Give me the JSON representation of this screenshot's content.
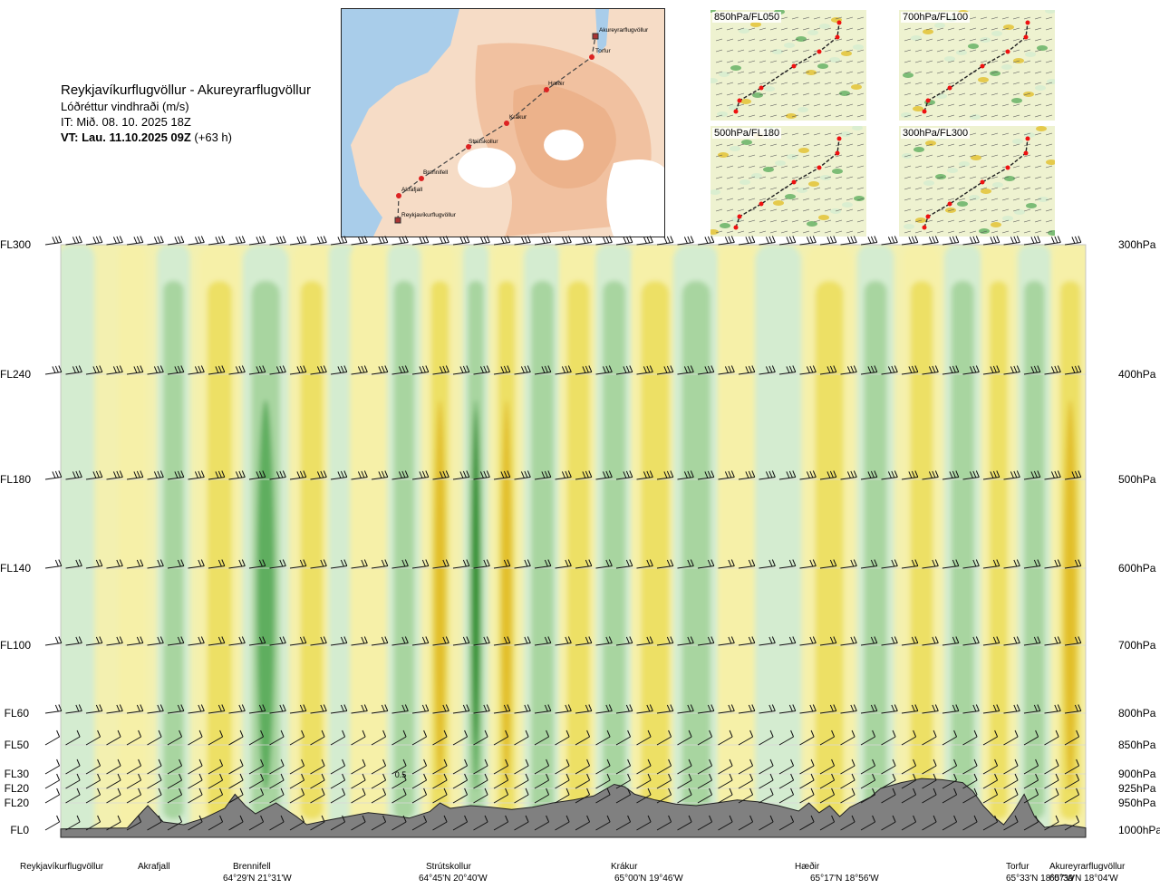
{
  "header": {
    "route": "Reykjavíkurflugvöllur - Akureyrarflugvöllur",
    "parameter": "Lóðréttur vindhraði (m/s)",
    "issue_time": "IT: Mið. 08. 10. 2025 18Z",
    "valid_prefix": "VT: Lau. 11.10.2025 09Z",
    "valid_suffix": " (+63 h)"
  },
  "route_map": {
    "waypoints": [
      "Akureyrarflugvöllur",
      "Torfur",
      "Hæðir",
      "Krákur",
      "Strútskollur",
      "Brennifell",
      "Akrafjall",
      "Reykjavíkurflugvöllur"
    ]
  },
  "insets": [
    {
      "label": "850hPa/FL050"
    },
    {
      "label": "700hPa/FL100"
    },
    {
      "label": "500hPa/FL180"
    },
    {
      "label": "300hPa/FL300"
    }
  ],
  "colors": {
    "strong_up": "#2b8c2b",
    "up": "#5fae5f",
    "weak_up": "#a8d5a0",
    "very_weak_up": "#d4ecd0",
    "neutral": "#f4f9ec",
    "very_weak_down": "#f6f0a8",
    "weak_down": "#ede065",
    "down": "#e2bf2a",
    "strong_down": "#d07a10",
    "terrain": "#808080"
  },
  "chart_data": {
    "type": "heatmap",
    "title": "Lóðréttur vindhraði (m/s)",
    "xlabel": "",
    "ylabel": "",
    "x_range": [
      0,
      100
    ],
    "annotation": "0.5",
    "flight_levels": [
      {
        "label": "FL300",
        "hpa": "300hPa",
        "p": 300
      },
      {
        "label": "FL240",
        "hpa": "400hPa",
        "p": 400
      },
      {
        "label": "FL180",
        "hpa": "500hPa",
        "p": 500
      },
      {
        "label": "FL140",
        "hpa": "600hPa",
        "p": 600
      },
      {
        "label": "FL100",
        "hpa": "700hPa",
        "p": 700
      },
      {
        "label": "FL60",
        "hpa": "800hPa",
        "p": 800
      },
      {
        "label": "FL50",
        "hpa": "850hPa",
        "p": 850
      },
      {
        "label": "FL30",
        "hpa": "900hPa",
        "p": 900
      },
      {
        "label": "FL20",
        "hpa": "925hPa",
        "p": 925
      },
      {
        "label": "FL20",
        "hpa": "950hPa",
        "p": 950
      },
      {
        "label": "FL0",
        "hpa": "1000hPa",
        "p": 1000
      }
    ],
    "waypoints": [
      {
        "name": "Reykjavíkurflugvöllur",
        "coord": "",
        "x": 0
      },
      {
        "name": "Akrafjall",
        "coord": "",
        "x": 8.5
      },
      {
        "name": "Brennifell",
        "coord": "64°29'N 21°31'W",
        "x": 17
      },
      {
        "name": "Strútskollur",
        "coord": "64°45'N 20°40'W",
        "x": 37
      },
      {
        "name": "Krákur",
        "coord": "65°00'N 19°46'W",
        "x": 55
      },
      {
        "name": "Hæðir",
        "coord": "65°17'N 18°56'W",
        "x": 74
      },
      {
        "name": "Torfur",
        "coord": "65°33'N 18°07'W",
        "x": 94
      },
      {
        "name": "Akureyrarflugvöllur",
        "coord": "65°39'N 18°04'W",
        "x": 100
      }
    ],
    "terrain_p": [
      [
        0,
        998
      ],
      [
        6.5,
        996
      ],
      [
        7.5,
        975
      ],
      [
        8.5,
        955
      ],
      [
        10,
        985
      ],
      [
        12,
        990
      ],
      [
        14,
        978
      ],
      [
        16,
        960
      ],
      [
        17,
        935
      ],
      [
        18,
        955
      ],
      [
        19,
        970
      ],
      [
        21,
        950
      ],
      [
        23,
        975
      ],
      [
        24,
        990
      ],
      [
        26,
        982
      ],
      [
        28,
        975
      ],
      [
        30,
        968
      ],
      [
        32,
        972
      ],
      [
        34,
        978
      ],
      [
        36,
        966
      ],
      [
        37,
        950
      ],
      [
        38,
        960
      ],
      [
        40,
        955
      ],
      [
        42,
        958
      ],
      [
        44,
        962
      ],
      [
        46,
        958
      ],
      [
        48,
        950
      ],
      [
        50,
        945
      ],
      [
        52,
        938
      ],
      [
        53,
        928
      ],
      [
        54,
        918
      ],
      [
        55,
        922
      ],
      [
        56,
        935
      ],
      [
        58,
        945
      ],
      [
        60,
        952
      ],
      [
        62,
        955
      ],
      [
        64,
        950
      ],
      [
        66,
        945
      ],
      [
        68,
        948
      ],
      [
        70,
        955
      ],
      [
        72,
        965
      ],
      [
        73,
        950
      ],
      [
        74,
        968
      ],
      [
        75,
        955
      ],
      [
        76,
        975
      ],
      [
        77,
        958
      ],
      [
        79,
        940
      ],
      [
        80,
        925
      ],
      [
        82,
        915
      ],
      [
        84,
        908
      ],
      [
        86,
        910
      ],
      [
        88,
        915
      ],
      [
        89,
        930
      ],
      [
        90,
        955
      ],
      [
        91,
        975
      ],
      [
        92,
        990
      ],
      [
        93,
        965
      ],
      [
        94,
        935
      ],
      [
        95,
        975
      ],
      [
        96,
        995
      ],
      [
        98,
        990
      ],
      [
        100,
        996
      ]
    ],
    "vertical_bands": [
      {
        "x": 1.5,
        "w": 2,
        "v": 0.2
      },
      {
        "x": 7,
        "w": 1.5,
        "v": -0.2
      },
      {
        "x": 11,
        "w": 1.8,
        "v": 0.3
      },
      {
        "x": 15.5,
        "w": 2.2,
        "v": -0.4
      },
      {
        "x": 20,
        "w": 2.5,
        "v": 0.5
      },
      {
        "x": 24.5,
        "w": 2,
        "v": -0.3
      },
      {
        "x": 27.5,
        "w": 1.5,
        "v": 0.2
      },
      {
        "x": 30,
        "w": 2,
        "v": -0.2
      },
      {
        "x": 33.5,
        "w": 1.8,
        "v": 0.4
      },
      {
        "x": 37,
        "w": 1.6,
        "v": -0.6
      },
      {
        "x": 40.5,
        "w": 1.4,
        "v": 1.6
      },
      {
        "x": 43.5,
        "w": 1.5,
        "v": -0.6
      },
      {
        "x": 47,
        "w": 2,
        "v": 0.3
      },
      {
        "x": 50.5,
        "w": 2,
        "v": -0.4
      },
      {
        "x": 54,
        "w": 2,
        "v": 0.3
      },
      {
        "x": 58,
        "w": 2.5,
        "v": -0.3
      },
      {
        "x": 62,
        "w": 2.5,
        "v": 0.3
      },
      {
        "x": 66,
        "w": 2,
        "v": -0.2
      },
      {
        "x": 70,
        "w": 2.5,
        "v": 0.2
      },
      {
        "x": 75,
        "w": 2.5,
        "v": -0.4
      },
      {
        "x": 79.5,
        "w": 2,
        "v": 0.3
      },
      {
        "x": 84,
        "w": 2,
        "v": -0.3
      },
      {
        "x": 88,
        "w": 2,
        "v": 0.4
      },
      {
        "x": 91.5,
        "w": 1.6,
        "v": -0.4
      },
      {
        "x": 95,
        "w": 1.8,
        "v": 0.3
      },
      {
        "x": 98.5,
        "w": 1.8,
        "v": -0.7
      }
    ]
  }
}
